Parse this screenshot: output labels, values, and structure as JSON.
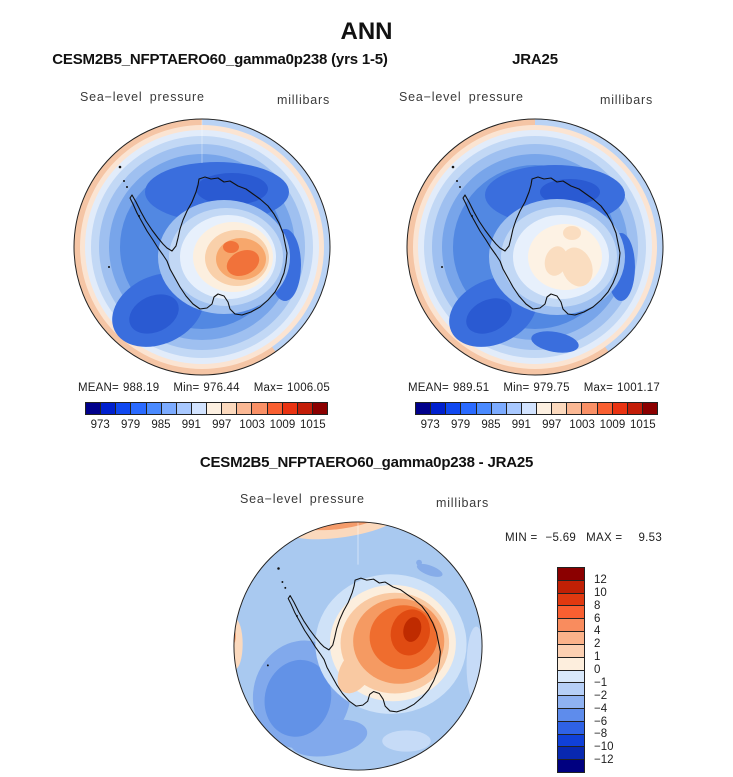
{
  "page_title": "ANN",
  "panels": [
    {
      "title": "CESM2B5_NFPTAERO60_gamma0p238 (yrs 1-5)",
      "field_label": "Sea−level pressure",
      "units_label": "millibars",
      "stats": {
        "mean_label": "MEAN=",
        "mean_value": "988.19",
        "min_label": "Min=",
        "min_value": "976.44",
        "max_label": "Max=",
        "max_value": "1006.05"
      }
    },
    {
      "title": "JRA25",
      "field_label": "Sea−level pressure",
      "units_label": "millibars",
      "stats": {
        "mean_label": "MEAN=",
        "mean_value": "989.51",
        "min_label": "Min=",
        "min_value": "979.75",
        "max_label": "Max=",
        "max_value": "1001.17"
      }
    }
  ],
  "diff_panel": {
    "title": "CESM2B5_NFPTAERO60_gamma0p238 - JRA25",
    "field_label": "Sea−level pressure",
    "units_label": "millibars",
    "stats": {
      "min_label": "MIN =",
      "min_value": "−5.69",
      "max_label": "MAX =",
      "max_value": "9.53"
    }
  },
  "colorbar_slp": {
    "orientation": "horizontal",
    "colors": [
      "#00008b",
      "#0020ce",
      "#1048f0",
      "#2a6aff",
      "#4a8aff",
      "#7cabff",
      "#a8c8ff",
      "#d2e3ff",
      "#fdf0e1",
      "#fcd9bd",
      "#fbb894",
      "#f99066",
      "#f95f31",
      "#e93312",
      "#c31d08",
      "#8b0000"
    ],
    "ticks": [
      "973",
      "979",
      "985",
      "991",
      "997",
      "1003",
      "1009",
      "1015"
    ]
  },
  "colorbar_diff": {
    "orientation": "vertical",
    "colors": [
      "#8b0000",
      "#c02005",
      "#e03910",
      "#f95f31",
      "#f98c5e",
      "#fbb28a",
      "#fcd0b2",
      "#fdeedd",
      "#d8e8fb",
      "#b6cff7",
      "#8fb2f2",
      "#5e8cec",
      "#2f62e6",
      "#1040d8",
      "#0828b0",
      "#000080"
    ],
    "labels": [
      "12",
      "10",
      "8",
      "6",
      "4",
      "2",
      "1",
      "0",
      "−1",
      "−2",
      "−4",
      "−6",
      "−8",
      "−10",
      "−12"
    ]
  },
  "chart_data": [
    {
      "type": "heatmap",
      "subtype": "polar-stereographic-filled-contour",
      "region": "Antarctica / Southern Hemisphere",
      "title": "CESM2B5_NFPTAERO60_gamma0p238 (yrs 1-5)",
      "season": "ANN",
      "variable": "Sea-level pressure",
      "units": "millibars",
      "stats": {
        "mean": 988.19,
        "min": 976.44,
        "max": 1006.05
      },
      "contour_boundaries": [
        970,
        973,
        976,
        979,
        982,
        985,
        988,
        991,
        994,
        997,
        1000,
        1003,
        1006,
        1009,
        1012,
        1015,
        1018
      ],
      "labeled_ticks": [
        973,
        979,
        985,
        991,
        997,
        1003,
        1009,
        1015
      ],
      "palette": "blue-to-red diverging, 16 bands",
      "legend_position": "below"
    },
    {
      "type": "heatmap",
      "subtype": "polar-stereographic-filled-contour",
      "region": "Antarctica / Southern Hemisphere",
      "title": "JRA25",
      "season": "ANN",
      "variable": "Sea-level pressure",
      "units": "millibars",
      "stats": {
        "mean": 989.51,
        "min": 979.75,
        "max": 1001.17
      },
      "contour_boundaries": [
        970,
        973,
        976,
        979,
        982,
        985,
        988,
        991,
        994,
        997,
        1000,
        1003,
        1006,
        1009,
        1012,
        1015,
        1018
      ],
      "labeled_ticks": [
        973,
        979,
        985,
        991,
        997,
        1003,
        1009,
        1015
      ],
      "palette": "blue-to-red diverging, 16 bands",
      "legend_position": "below"
    },
    {
      "type": "heatmap",
      "subtype": "polar-stereographic-filled-contour-difference",
      "region": "Antarctica / Southern Hemisphere",
      "title": "CESM2B5_NFPTAERO60_gamma0p238 - JRA25",
      "season": "ANN",
      "variable": "Sea-level pressure difference",
      "units": "millibars",
      "stats": {
        "min": -5.69,
        "max": 9.53
      },
      "contour_boundaries": [
        -12,
        -10,
        -8,
        -6,
        -4,
        -2,
        -1,
        0,
        1,
        2,
        4,
        6,
        8,
        10,
        12
      ],
      "palette": "blue-to-red diverging, 16 bands",
      "legend_position": "right"
    }
  ]
}
